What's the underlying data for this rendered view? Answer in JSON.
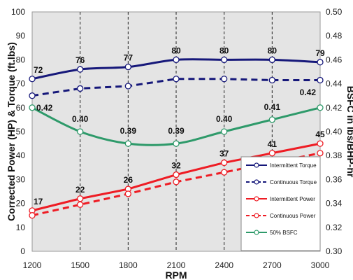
{
  "chart_data": {
    "type": "line",
    "x": [
      1200,
      1500,
      1800,
      2100,
      2400,
      2700,
      3000
    ],
    "xlabel": "RPM",
    "ylabel": "Corrected Power (HP) & Torque (ft.lbs)",
    "ylabel2": "BSFC in lbs/BHP-hr",
    "xlim": [
      1200,
      3000
    ],
    "ylim": [
      0,
      100
    ],
    "ylim2": [
      0.3,
      0.5
    ],
    "x_ticks": [
      "1200",
      "1500",
      "1800",
      "2100",
      "2400",
      "2700",
      "3000"
    ],
    "y_ticks": [
      "0",
      "10",
      "20",
      "30",
      "40",
      "50",
      "60",
      "70",
      "80",
      "90",
      "100"
    ],
    "y2_ticks": [
      "0.30",
      "0.32",
      "0.34",
      "0.36",
      "0.38",
      "0.40",
      "0.42",
      "0.44",
      "0.46",
      "0.48",
      "0.50"
    ],
    "grid": "vertical dashed at each RPM tick",
    "legend_position": "bottom-right",
    "series": [
      {
        "name": "Intermittent Torque",
        "axis": "left",
        "color": "#16187a",
        "dash": "solid",
        "values": [
          72,
          76,
          77,
          80,
          80,
          80,
          79
        ],
        "labels": [
          "72",
          "76",
          "77",
          "80",
          "80",
          "80",
          "79"
        ]
      },
      {
        "name": "Continuous Torque",
        "axis": "left",
        "color": "#16187a",
        "dash": "dashed",
        "values": [
          65,
          68,
          69,
          72,
          72,
          71.5,
          71.5
        ],
        "labels": []
      },
      {
        "name": "Intermittent Power",
        "axis": "left",
        "color": "#ee1c24",
        "dash": "solid",
        "values": [
          17,
          22,
          26,
          32,
          37,
          41,
          45
        ],
        "labels": [
          "17",
          "22",
          "26",
          "32",
          "37",
          "41",
          "45"
        ]
      },
      {
        "name": "Continuous Power",
        "axis": "left",
        "color": "#ee1c24",
        "dash": "dashed",
        "values": [
          15,
          19.5,
          24,
          29,
          33,
          37,
          41
        ],
        "labels": []
      },
      {
        "name": "50% BSFC",
        "axis": "right",
        "color": "#2e9a6a",
        "dash": "solid",
        "values": [
          0.42,
          0.4,
          0.39,
          0.39,
          0.4,
          0.41,
          0.42
        ],
        "labels": [
          "0.42",
          "0.40",
          "0.39",
          "0.39",
          "0.40",
          "0.41",
          "0.42"
        ]
      }
    ]
  }
}
